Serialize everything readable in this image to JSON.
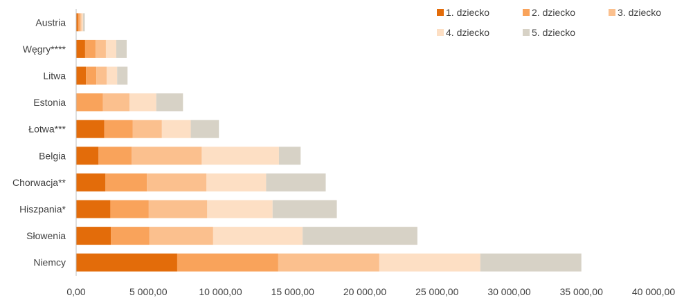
{
  "chart_data": {
    "type": "bar",
    "orientation": "horizontal",
    "stacked": true,
    "categories": [
      "Austria",
      "Węgry****",
      "Litwa",
      "Estonia",
      "Łotwa***",
      "Belgia",
      "Chorwacja**",
      "Hiszpania*",
      "Słowenia",
      "Niemcy"
    ],
    "series": [
      {
        "name": "1. dziecko",
        "color": "#E36C0A",
        "values": [
          120,
          620,
          680,
          0,
          1950,
          1550,
          2030,
          2370,
          2400,
          7000
        ]
      },
      {
        "name": "2. dziecko",
        "color": "#F9A35B",
        "values": [
          120,
          720,
          720,
          1850,
          1960,
          2300,
          2870,
          2660,
          2660,
          7000
        ]
      },
      {
        "name": "3. dziecko",
        "color": "#FBC08E",
        "values": [
          120,
          720,
          720,
          1850,
          2030,
          4850,
          4130,
          4050,
          4430,
          7000
        ]
      },
      {
        "name": "4. dziecko",
        "color": "#FDDFC4",
        "values": [
          120,
          720,
          720,
          1850,
          2000,
          5350,
          4130,
          4530,
          6200,
          7000
        ]
      },
      {
        "name": "5. dziecko",
        "color": "#D7D2C6",
        "values": [
          120,
          720,
          720,
          1850,
          1950,
          1500,
          4130,
          4450,
          7950,
          7000
        ]
      }
    ],
    "xlim": [
      0,
      40000
    ],
    "x_ticks": [
      "0,00",
      "5 000,00",
      "10 000,00",
      "15 000,00",
      "20 000,00",
      "25 000,00",
      "30 000,00",
      "35 000,00",
      "40 000,00"
    ],
    "legend": "top-right",
    "grid": false
  }
}
